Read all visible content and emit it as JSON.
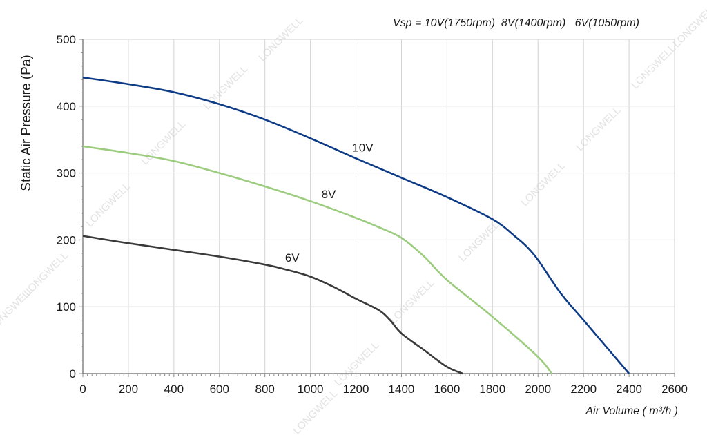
{
  "chart_data": {
    "type": "line",
    "subtitle": "Vsp = 10V(1750rpm)  8V(1400rpm)   6V(1050rpm)",
    "xlabel": "Air Volume ( m³/h )",
    "ylabel": "Static Air Pressure  (Pa)",
    "xlim": [
      0,
      2600
    ],
    "ylim": [
      0,
      500
    ],
    "x_ticks": [
      0,
      200,
      400,
      600,
      800,
      1000,
      1200,
      1400,
      1600,
      1800,
      2000,
      2200,
      2400,
      2600
    ],
    "y_ticks": [
      0,
      100,
      200,
      300,
      400,
      500
    ],
    "grid": true,
    "watermark": "LONGWELL",
    "series": [
      {
        "name": "10V",
        "color": "#0d3b86",
        "x": [
          0,
          200,
          400,
          600,
          800,
          1000,
          1200,
          1400,
          1600,
          1800,
          1900,
          1950,
          2000,
          2100,
          2200,
          2300,
          2400
        ],
        "y": [
          443,
          433,
          421,
          403,
          380,
          352,
          322,
          293,
          264,
          231,
          205,
          190,
          170,
          120,
          80,
          40,
          0
        ]
      },
      {
        "name": "8V",
        "color": "#9ccc7e",
        "x": [
          0,
          200,
          400,
          600,
          800,
          1000,
          1200,
          1300,
          1400,
          1500,
          1600,
          1800,
          2000,
          2060
        ],
        "y": [
          340,
          330,
          318,
          300,
          280,
          258,
          233,
          219,
          203,
          175,
          140,
          85,
          25,
          0
        ]
      },
      {
        "name": "6V",
        "color": "#3a3a3a",
        "x": [
          0,
          200,
          400,
          600,
          800,
          900,
          1000,
          1100,
          1200,
          1300,
          1350,
          1400,
          1500,
          1600,
          1670
        ],
        "y": [
          206,
          195,
          185,
          175,
          163,
          155,
          145,
          130,
          112,
          95,
          80,
          60,
          35,
          10,
          0
        ]
      }
    ]
  }
}
